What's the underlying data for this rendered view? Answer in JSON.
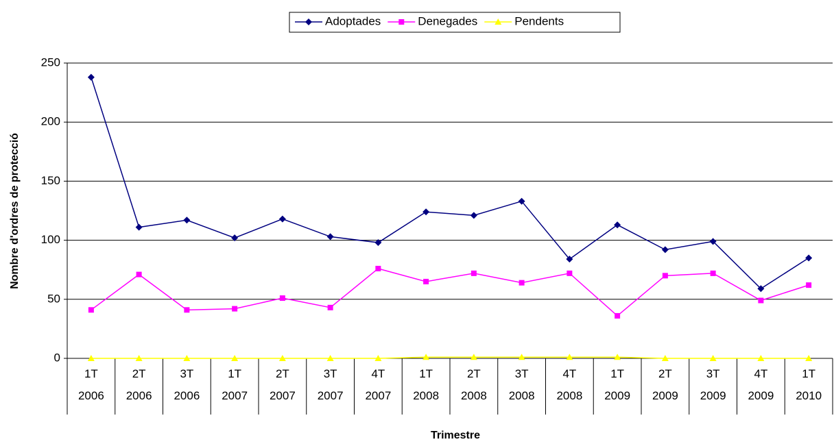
{
  "chart_data": {
    "type": "line",
    "x_label": "Trimestre",
    "y_label": "Nombre d'ordres de protecció",
    "categories": [
      "1T 2006",
      "2T 2006",
      "3T 2006",
      "1T 2007",
      "2T 2007",
      "3T 2007",
      "4T 2007",
      "1T 2008",
      "2T 2008",
      "3T 2008",
      "4T 2008",
      "1T 2009",
      "2T 2009",
      "3T 2009",
      "4T 2009",
      "1T 2010"
    ],
    "series": [
      {
        "name": "Adoptades",
        "color": "#000080",
        "marker": "diamond",
        "values": [
          238,
          111,
          117,
          102,
          118,
          103,
          98,
          124,
          121,
          133,
          84,
          113,
          92,
          99,
          59,
          85
        ]
      },
      {
        "name": "Denegades",
        "color": "#ff00ff",
        "marker": "square",
        "values": [
          41,
          71,
          41,
          42,
          51,
          43,
          76,
          65,
          72,
          64,
          72,
          36,
          70,
          72,
          49,
          62
        ]
      },
      {
        "name": "Pendents",
        "color": "#ffff00",
        "marker": "triangle",
        "values": [
          0,
          0,
          0,
          0,
          0,
          0,
          0,
          1,
          1,
          1,
          1,
          1,
          0,
          0,
          0,
          0
        ]
      }
    ],
    "ylim": [
      0,
      250
    ],
    "yticks": [
      0,
      50,
      100,
      150,
      200,
      250
    ],
    "grid": true,
    "legend": "top"
  }
}
